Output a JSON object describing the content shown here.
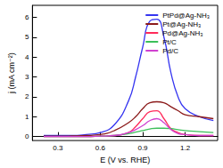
{
  "chart_data": {
    "type": "line",
    "x_label": "E (V vs. RHE)",
    "y_label": "j (mA cm⁻²)",
    "x": [
      0.2,
      0.3,
      0.4,
      0.5,
      0.6,
      0.7,
      0.8,
      0.85,
      0.9,
      0.95,
      1.0,
      1.05,
      1.1,
      1.15,
      1.2,
      1.3,
      1.4
    ],
    "series": [
      {
        "name": "PtPd@Ag-NH₃",
        "color": "#3535f0",
        "values": [
          0.05,
          0.05,
          0.05,
          0.1,
          0.2,
          0.6,
          1.8,
          3.0,
          4.5,
          5.8,
          5.9,
          5.0,
          3.2,
          2.0,
          1.4,
          1.0,
          0.8
        ]
      },
      {
        "name": "Pt@Ag-NH₃",
        "color": "#8b1a1a",
        "values": [
          0.02,
          0.02,
          0.03,
          0.05,
          0.1,
          0.3,
          0.7,
          1.0,
          1.4,
          1.7,
          1.75,
          1.7,
          1.5,
          1.3,
          1.1,
          1.0,
          0.9
        ]
      },
      {
        "name": "Pd@Ag-NH₃",
        "color": "#ff2a5a",
        "values": [
          0,
          0,
          0,
          0,
          0.02,
          0.05,
          0.2,
          0.5,
          0.9,
          1.25,
          1.3,
          0.9,
          0.4,
          0.2,
          0.1,
          0.05,
          0.05
        ]
      },
      {
        "name": "Pt/C",
        "color": "#3cbf5a",
        "values": [
          0,
          0,
          0,
          0,
          0.02,
          0.05,
          0.15,
          0.22,
          0.3,
          0.38,
          0.42,
          0.42,
          0.4,
          0.35,
          0.3,
          0.25,
          0.2
        ]
      },
      {
        "name": "Pd/C",
        "color": "#d040d0",
        "values": [
          0,
          0,
          0,
          0,
          0.02,
          0.05,
          0.2,
          0.35,
          0.55,
          0.8,
          0.9,
          0.7,
          0.35,
          0.15,
          0.1,
          0.05,
          0.05
        ]
      }
    ],
    "xlim": [
      0.12,
      1.43
    ],
    "xticks": [
      0.3,
      0.6,
      0.9,
      1.2
    ],
    "ylim": [
      -0.2,
      6.6
    ],
    "yticks": [
      0,
      1,
      2,
      3,
      4,
      5,
      6
    ],
    "grid": false,
    "legend": "upper right"
  }
}
